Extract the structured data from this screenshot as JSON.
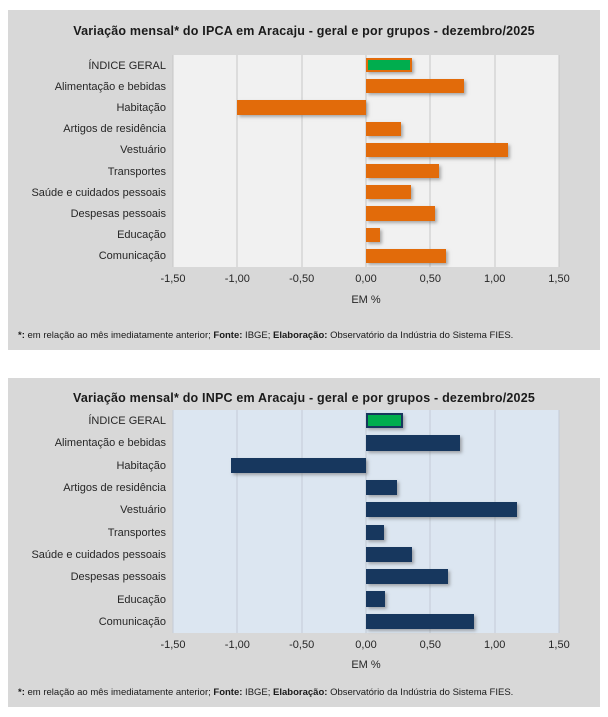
{
  "page_background": "#ffffff",
  "panel_background": "#d8d8d8",
  "chart_data": [
    {
      "type": "bar",
      "orientation": "horizontal",
      "title": "Variação mensal* do IPCA em Aracaju - geral e por grupos - dezembro/2025",
      "xlabel": "EM %",
      "x_min": -1.5,
      "x_max": 1.5,
      "x_ticks": [
        "-1,50",
        "-1,00",
        "-0,50",
        "0,00",
        "0,50",
        "1,00",
        "1,50"
      ],
      "grid": true,
      "legend": false,
      "plot_bg": "#f1f1f1",
      "bar_color": "#e26b0a",
      "highlight_index": 0,
      "highlight_fill": "#00ad4e",
      "highlight_border": "#e26b0a",
      "categories": [
        "ÍNDICE GERAL",
        "Alimentação e bebidas",
        "Habitação",
        "Artigos de residência",
        "Vestuário",
        "Transportes",
        "Saúde e cuidados pessoais",
        "Despesas pessoais",
        "Educação",
        "Comunicação"
      ],
      "values": [
        0.36,
        0.76,
        -1.0,
        0.27,
        1.1,
        0.57,
        0.35,
        0.54,
        0.11,
        0.62
      ]
    },
    {
      "type": "bar",
      "orientation": "horizontal",
      "title": "Variação mensal* do INPC em Aracaju - geral e por grupos - dezembro/2025",
      "xlabel": "EM %",
      "x_min": -1.5,
      "x_max": 1.5,
      "x_ticks": [
        "-1,50",
        "-1,00",
        "-0,50",
        "0,00",
        "0,50",
        "1,00",
        "1,50"
      ],
      "grid": true,
      "legend": false,
      "plot_bg": "#dce6f1",
      "bar_color": "#17375e",
      "highlight_index": 0,
      "highlight_fill": "#00ad4e",
      "highlight_border": "#17375e",
      "categories": [
        "ÍNDICE GERAL",
        "Alimentação e bebidas",
        "Habitação",
        "Artigos de residência",
        "Vestuário",
        "Transportes",
        "Saúde e cuidados pessoais",
        "Despesas pessoais",
        "Educação",
        "Comunicação"
      ],
      "values": [
        0.29,
        0.73,
        -1.05,
        0.24,
        1.17,
        0.14,
        0.36,
        0.64,
        0.15,
        0.84
      ]
    }
  ],
  "footnote": {
    "star": "*:",
    "note": " em relação ao mês imediatamente anterior; ",
    "fonte_label": "Fonte:",
    "fonte_text": " IBGE; ",
    "elab_label": "Elaboração:",
    "elab_text": " Observatório da Indústria do Sistema FIES."
  }
}
